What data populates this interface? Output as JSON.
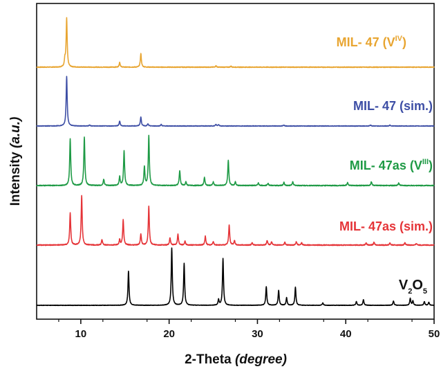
{
  "chart_data": {
    "type": "line",
    "xlabel": "2-Theta",
    "xlabel_unit": "(degree)",
    "ylabel": "Intensity",
    "ylabel_unit": "(a.u.)",
    "xlim": [
      5,
      50
    ],
    "xticks": [
      10,
      20,
      30,
      40,
      50
    ],
    "y_ticks_shown": false,
    "series": [
      {
        "name": "MIL- 47 (V",
        "superscript": "IV",
        "suffix": ")",
        "color": "#E8A531",
        "peaks": [
          [
            8.4,
            1.0
          ],
          [
            8.2,
            0.15
          ],
          [
            14.4,
            0.1
          ],
          [
            16.8,
            0.28
          ],
          [
            25.3,
            0.03
          ],
          [
            27.0,
            0.02
          ]
        ]
      },
      {
        "name": "MIL- 47 (sim.)",
        "color": "#3D4EA5",
        "peaks": [
          [
            8.4,
            1.0
          ],
          [
            11.0,
            0.02
          ],
          [
            14.4,
            0.1
          ],
          [
            16.8,
            0.18
          ],
          [
            17.6,
            0.04
          ],
          [
            19.1,
            0.03
          ],
          [
            25.3,
            0.03
          ],
          [
            25.6,
            0.03
          ],
          [
            33.0,
            0.02
          ],
          [
            42.8,
            0.02
          ],
          [
            45.0,
            0.02
          ]
        ]
      },
      {
        "name": "MIL- 47as (V",
        "superscript": "III",
        "suffix": ")",
        "color": "#1E9A45",
        "peaks": [
          [
            8.8,
            0.75
          ],
          [
            10.4,
            0.78
          ],
          [
            12.6,
            0.1
          ],
          [
            14.4,
            0.14
          ],
          [
            14.9,
            0.56
          ],
          [
            17.2,
            0.3
          ],
          [
            17.7,
            0.8
          ],
          [
            21.2,
            0.24
          ],
          [
            21.9,
            0.06
          ],
          [
            24.0,
            0.13
          ],
          [
            25.0,
            0.06
          ],
          [
            26.7,
            0.4
          ],
          [
            27.5,
            0.06
          ],
          [
            30.1,
            0.04
          ],
          [
            31.2,
            0.04
          ],
          [
            33.0,
            0.05
          ],
          [
            34.0,
            0.06
          ],
          [
            40.2,
            0.05
          ],
          [
            42.9,
            0.06
          ],
          [
            46.0,
            0.04
          ]
        ]
      },
      {
        "name": "MIL- 47as (sim.)",
        "color": "#E53438",
        "peaks": [
          [
            8.8,
            0.58
          ],
          [
            10.1,
            0.89
          ],
          [
            12.4,
            0.1
          ],
          [
            14.4,
            0.1
          ],
          [
            14.8,
            0.46
          ],
          [
            16.8,
            0.2
          ],
          [
            17.7,
            0.7
          ],
          [
            20.1,
            0.13
          ],
          [
            21.0,
            0.2
          ],
          [
            21.8,
            0.07
          ],
          [
            24.1,
            0.16
          ],
          [
            25.0,
            0.06
          ],
          [
            26.8,
            0.36
          ],
          [
            27.4,
            0.08
          ],
          [
            29.4,
            0.04
          ],
          [
            31.1,
            0.08
          ],
          [
            31.6,
            0.06
          ],
          [
            33.1,
            0.05
          ],
          [
            34.4,
            0.06
          ],
          [
            35.0,
            0.04
          ],
          [
            42.3,
            0.04
          ],
          [
            43.2,
            0.05
          ],
          [
            45.0,
            0.04
          ],
          [
            46.7,
            0.04
          ],
          [
            48.0,
            0.03
          ]
        ]
      },
      {
        "name": "V",
        "subscript1": "2",
        "mid": "O",
        "subscript2": "5",
        "color": "#000000",
        "peaks": [
          [
            15.4,
            0.55
          ],
          [
            20.3,
            0.92
          ],
          [
            21.7,
            0.67
          ],
          [
            25.6,
            0.09
          ],
          [
            26.1,
            0.75
          ],
          [
            31.0,
            0.3
          ],
          [
            32.4,
            0.24
          ],
          [
            33.3,
            0.12
          ],
          [
            34.3,
            0.29
          ],
          [
            37.4,
            0.04
          ],
          [
            41.2,
            0.06
          ],
          [
            42.0,
            0.09
          ],
          [
            45.4,
            0.07
          ],
          [
            47.3,
            0.11
          ],
          [
            47.6,
            0.07
          ],
          [
            48.9,
            0.06
          ],
          [
            49.4,
            0.05
          ]
        ]
      }
    ]
  }
}
